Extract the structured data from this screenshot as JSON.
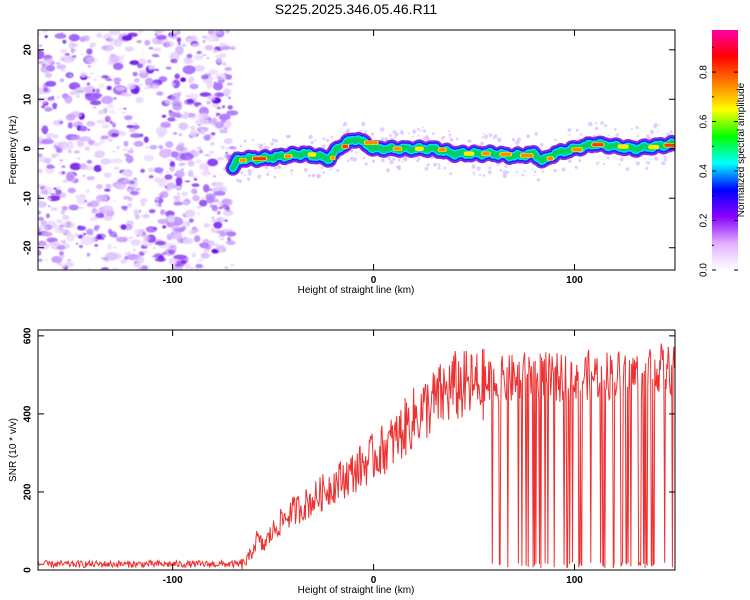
{
  "title": "S225.2025.346.05.46.R11",
  "chart_data": [
    {
      "type": "heatmap",
      "xlabel": "Height of straight line (km)",
      "ylabel": "Frequency (Hz)",
      "xlim": [
        -167,
        150
      ],
      "ylim": [
        -24.5,
        24
      ],
      "x_ticks": [
        -100,
        0,
        100
      ],
      "y_ticks": [
        -20,
        -10,
        0,
        10,
        20
      ],
      "colorbar": {
        "label": "Normalized spectral amplitude",
        "range": [
          0,
          0.97
        ],
        "ticks": [
          "0.0",
          "0.2",
          "0.4",
          "0.6",
          "0.8"
        ],
        "tick_values": [
          0,
          0.2,
          0.4,
          0.6,
          0.8
        ],
        "colors": [
          "#ffffff",
          "#e0b0ff",
          "#8a00ff",
          "#0000ff",
          "#00ffff",
          "#00ff00",
          "#ffff00",
          "#ff8000",
          "#ff0000",
          "#ff00aa"
        ]
      },
      "noise_region_x": [
        -167,
        -70
      ],
      "ridge": {
        "x": [
          -70,
          -68,
          -65,
          -55,
          -45,
          -35,
          -28,
          -22,
          -18,
          -12,
          -8,
          -4,
          0,
          10,
          20,
          30,
          40,
          50,
          60,
          70,
          80,
          84,
          90,
          100,
          110,
          120,
          130,
          140,
          150
        ],
        "freq": [
          -4,
          -2.5,
          -2,
          -2,
          -1.5,
          -1,
          -1.5,
          -2,
          0,
          1.5,
          2,
          1,
          0,
          0,
          0,
          0,
          -1,
          -1,
          -1,
          -1.5,
          -1,
          -2.5,
          -1,
          0,
          1,
          0.5,
          0,
          0.5,
          1
        ]
      }
    },
    {
      "type": "line",
      "xlabel": "Height of straight line (km)",
      "ylabel": "SNR (10 * v/v)",
      "xlim": [
        -167,
        150
      ],
      "ylim": [
        0,
        615
      ],
      "x_ticks": [
        -100,
        0,
        100
      ],
      "y_ticks": [
        0,
        200,
        400,
        600
      ],
      "color": "#ee3030",
      "series": [
        {
          "name": "SNR",
          "x": [
            -167,
            -120,
            -80,
            -65,
            -62,
            -58,
            -55,
            -50,
            -45,
            -40,
            -30,
            -20,
            -10,
            0,
            10,
            20,
            30,
            40,
            50,
            60,
            70,
            80,
            90,
            100,
            110,
            120,
            130,
            140,
            150
          ],
          "values": [
            15,
            15,
            15,
            15,
            30,
            80,
            60,
            100,
            130,
            150,
            180,
            220,
            250,
            290,
            330,
            390,
            430,
            470,
            470,
            480,
            490,
            500,
            490,
            500,
            500,
            500,
            500,
            520,
            510
          ],
          "dropouts_after_x": 57
        }
      ]
    }
  ]
}
